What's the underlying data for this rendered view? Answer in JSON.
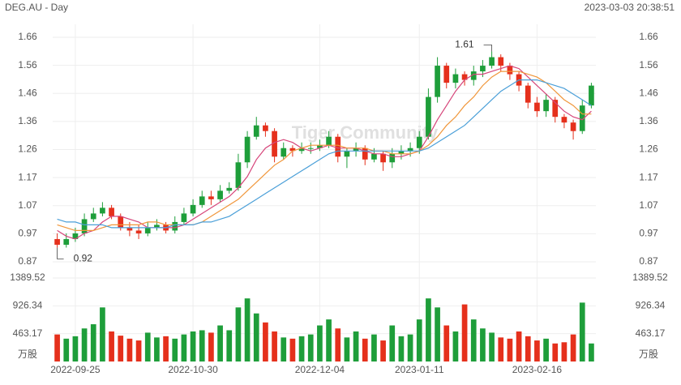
{
  "header": {
    "title": "DEG.AU - Day",
    "timestamp": "2023-03-03 20:38:51"
  },
  "watermark": "Tiger Community",
  "chart_data": {
    "type": "candlestick",
    "categories": [
      null,
      null,
      "2022-09-25",
      null,
      null,
      null,
      null,
      null,
      null,
      null,
      null,
      null,
      null,
      null,
      null,
      "2022-10-30",
      null,
      null,
      null,
      null,
      null,
      null,
      null,
      null,
      null,
      null,
      null,
      null,
      null,
      "2022-12-04",
      null,
      null,
      null,
      null,
      null,
      null,
      null,
      null,
      null,
      null,
      "2023-01-11",
      null,
      null,
      null,
      null,
      null,
      null,
      null,
      null,
      null,
      null,
      null,
      null,
      "2023-02-16",
      null,
      null,
      null,
      null,
      null,
      null
    ],
    "open": [
      0.95,
      0.93,
      0.95,
      0.97,
      1.02,
      1.04,
      1.06,
      1.03,
      0.99,
      0.98,
      0.97,
      0.99,
      1.0,
      0.98,
      1.01,
      1.04,
      1.07,
      1.1,
      1.09,
      1.12,
      1.13,
      1.22,
      1.31,
      1.35,
      1.33,
      1.24,
      1.27,
      1.26,
      1.27,
      1.27,
      1.28,
      1.31,
      1.24,
      1.26,
      1.27,
      1.23,
      1.25,
      1.22,
      1.25,
      1.26,
      1.27,
      1.31,
      1.45,
      1.56,
      1.5,
      1.53,
      1.51,
      1.54,
      1.56,
      1.59,
      1.56,
      1.53,
      1.49,
      1.43,
      1.4,
      1.44,
      1.38,
      1.36,
      1.33,
      1.42
    ],
    "high": [
      0.97,
      0.97,
      0.99,
      1.04,
      1.06,
      1.08,
      1.07,
      1.04,
      1.01,
      1.0,
      1.01,
      1.02,
      1.01,
      1.03,
      1.06,
      1.09,
      1.12,
      1.12,
      1.14,
      1.15,
      1.25,
      1.33,
      1.38,
      1.36,
      1.34,
      1.29,
      1.28,
      1.29,
      1.29,
      1.3,
      1.33,
      1.32,
      1.27,
      1.29,
      1.28,
      1.27,
      1.26,
      1.27,
      1.28,
      1.29,
      1.33,
      1.48,
      1.59,
      1.57,
      1.55,
      1.54,
      1.56,
      1.58,
      1.61,
      1.6,
      1.57,
      1.54,
      1.5,
      1.45,
      1.46,
      1.45,
      1.39,
      1.37,
      1.44,
      1.5
    ],
    "low": [
      0.92,
      0.92,
      0.94,
      0.96,
      1.01,
      1.03,
      1.02,
      0.98,
      0.96,
      0.95,
      0.96,
      0.98,
      0.97,
      0.97,
      1.0,
      1.03,
      1.06,
      1.07,
      1.08,
      1.11,
      1.12,
      1.2,
      1.3,
      1.31,
      1.22,
      1.23,
      1.24,
      1.25,
      1.25,
      1.26,
      1.27,
      1.22,
      1.2,
      1.24,
      1.21,
      1.22,
      1.19,
      1.2,
      1.23,
      1.24,
      1.25,
      1.3,
      1.43,
      1.48,
      1.48,
      1.49,
      1.49,
      1.52,
      1.55,
      1.54,
      1.51,
      1.47,
      1.41,
      1.38,
      1.38,
      1.36,
      1.34,
      1.3,
      1.32,
      1.41
    ],
    "close": [
      0.93,
      0.95,
      0.97,
      1.02,
      1.04,
      1.06,
      1.03,
      0.99,
      0.98,
      0.97,
      0.99,
      1.0,
      0.98,
      1.01,
      1.04,
      1.07,
      1.1,
      1.09,
      1.12,
      1.13,
      1.22,
      1.31,
      1.35,
      1.33,
      1.24,
      1.27,
      1.26,
      1.27,
      1.27,
      1.28,
      1.31,
      1.24,
      1.26,
      1.27,
      1.23,
      1.25,
      1.22,
      1.25,
      1.26,
      1.27,
      1.31,
      1.45,
      1.56,
      1.5,
      1.53,
      1.51,
      1.54,
      1.56,
      1.59,
      1.56,
      1.53,
      1.49,
      1.43,
      1.4,
      1.44,
      1.38,
      1.36,
      1.33,
      1.42,
      1.49
    ],
    "volume": [
      450,
      380,
      420,
      550,
      620,
      900,
      500,
      430,
      380,
      350,
      480,
      400,
      420,
      380,
      450,
      500,
      520,
      480,
      600,
      520,
      900,
      1050,
      800,
      650,
      500,
      400,
      380,
      420,
      450,
      600,
      700,
      550,
      400,
      500,
      380,
      450,
      350,
      600,
      420,
      450,
      700,
      1050,
      900,
      600,
      500,
      950,
      700,
      550,
      480,
      400,
      380,
      500,
      420,
      350,
      380,
      300,
      320,
      450,
      980,
      300
    ],
    "up_color": "#1e9e3a",
    "down_color": "#e5301c",
    "lines": [
      {
        "color": "#d6457a",
        "values": [
          0.98,
          0.96,
          0.95,
          0.97,
          0.98,
          1.01,
          1.03,
          1.03,
          1.02,
          1.01,
          0.99,
          0.99,
          0.99,
          0.99,
          1.0,
          1.02,
          1.04,
          1.06,
          1.08,
          1.1,
          1.13,
          1.17,
          1.23,
          1.27,
          1.29,
          1.3,
          1.29,
          1.27,
          1.26,
          1.27,
          1.28,
          1.27,
          1.27,
          1.27,
          1.26,
          1.25,
          1.25,
          1.24,
          1.24,
          1.25,
          1.26,
          1.31,
          1.37,
          1.42,
          1.47,
          1.51,
          1.53,
          1.53,
          1.54,
          1.55,
          1.56,
          1.55,
          1.52,
          1.49,
          1.46,
          1.43,
          1.4,
          1.38,
          1.37,
          1.4
        ]
      },
      {
        "color": "#f0963a",
        "values": [
          1.0,
          0.99,
          0.98,
          0.98,
          0.98,
          0.99,
          1.0,
          1.0,
          1.0,
          1.0,
          1.01,
          1.01,
          1.0,
          1.0,
          1.0,
          1.0,
          1.01,
          1.03,
          1.05,
          1.07,
          1.09,
          1.12,
          1.15,
          1.18,
          1.21,
          1.23,
          1.26,
          1.27,
          1.28,
          1.28,
          1.28,
          1.28,
          1.27,
          1.27,
          1.27,
          1.26,
          1.26,
          1.25,
          1.25,
          1.25,
          1.26,
          1.28,
          1.31,
          1.35,
          1.38,
          1.42,
          1.45,
          1.49,
          1.52,
          1.54,
          1.54,
          1.54,
          1.53,
          1.52,
          1.5,
          1.47,
          1.44,
          1.42,
          1.39,
          1.39
        ]
      },
      {
        "color": "#4a9fd8",
        "values": [
          1.02,
          1.01,
          1.01,
          1.0,
          1.0,
          1.0,
          0.99,
          0.99,
          0.99,
          0.99,
          0.99,
          0.99,
          0.99,
          1.0,
          1.0,
          1.0,
          1.01,
          1.01,
          1.02,
          1.03,
          1.05,
          1.07,
          1.09,
          1.11,
          1.13,
          1.15,
          1.17,
          1.19,
          1.21,
          1.23,
          1.25,
          1.26,
          1.26,
          1.26,
          1.26,
          1.26,
          1.26,
          1.26,
          1.26,
          1.26,
          1.26,
          1.27,
          1.29,
          1.31,
          1.33,
          1.35,
          1.38,
          1.41,
          1.44,
          1.47,
          1.49,
          1.51,
          1.51,
          1.51,
          1.5,
          1.49,
          1.48,
          1.46,
          1.44,
          1.42
        ]
      }
    ],
    "ylim": [
      0.87,
      1.66
    ],
    "yticks": [
      {
        "value": 0.87,
        "label": "0.87"
      },
      {
        "value": 0.96875,
        "label": "0.97"
      },
      {
        "value": 1.0675,
        "label": "1.07"
      },
      {
        "value": 1.16625,
        "label": "1.17"
      },
      {
        "value": 1.265,
        "label": "1.26"
      },
      {
        "value": 1.36375,
        "label": "1.36"
      },
      {
        "value": 1.4625,
        "label": "1.46"
      },
      {
        "value": 1.56125,
        "label": "1.56"
      },
      {
        "value": 1.66,
        "label": "1.66"
      }
    ],
    "y2lim": [
      0,
      1389.52
    ],
    "y2ticks": [
      463.17,
      926.34,
      1389.52
    ],
    "y2_unit": "万股",
    "annotations": [
      {
        "text": "1.61",
        "index": 48,
        "value": 1.61
      },
      {
        "text": "0.92",
        "index": 0,
        "value": 0.92
      }
    ]
  }
}
